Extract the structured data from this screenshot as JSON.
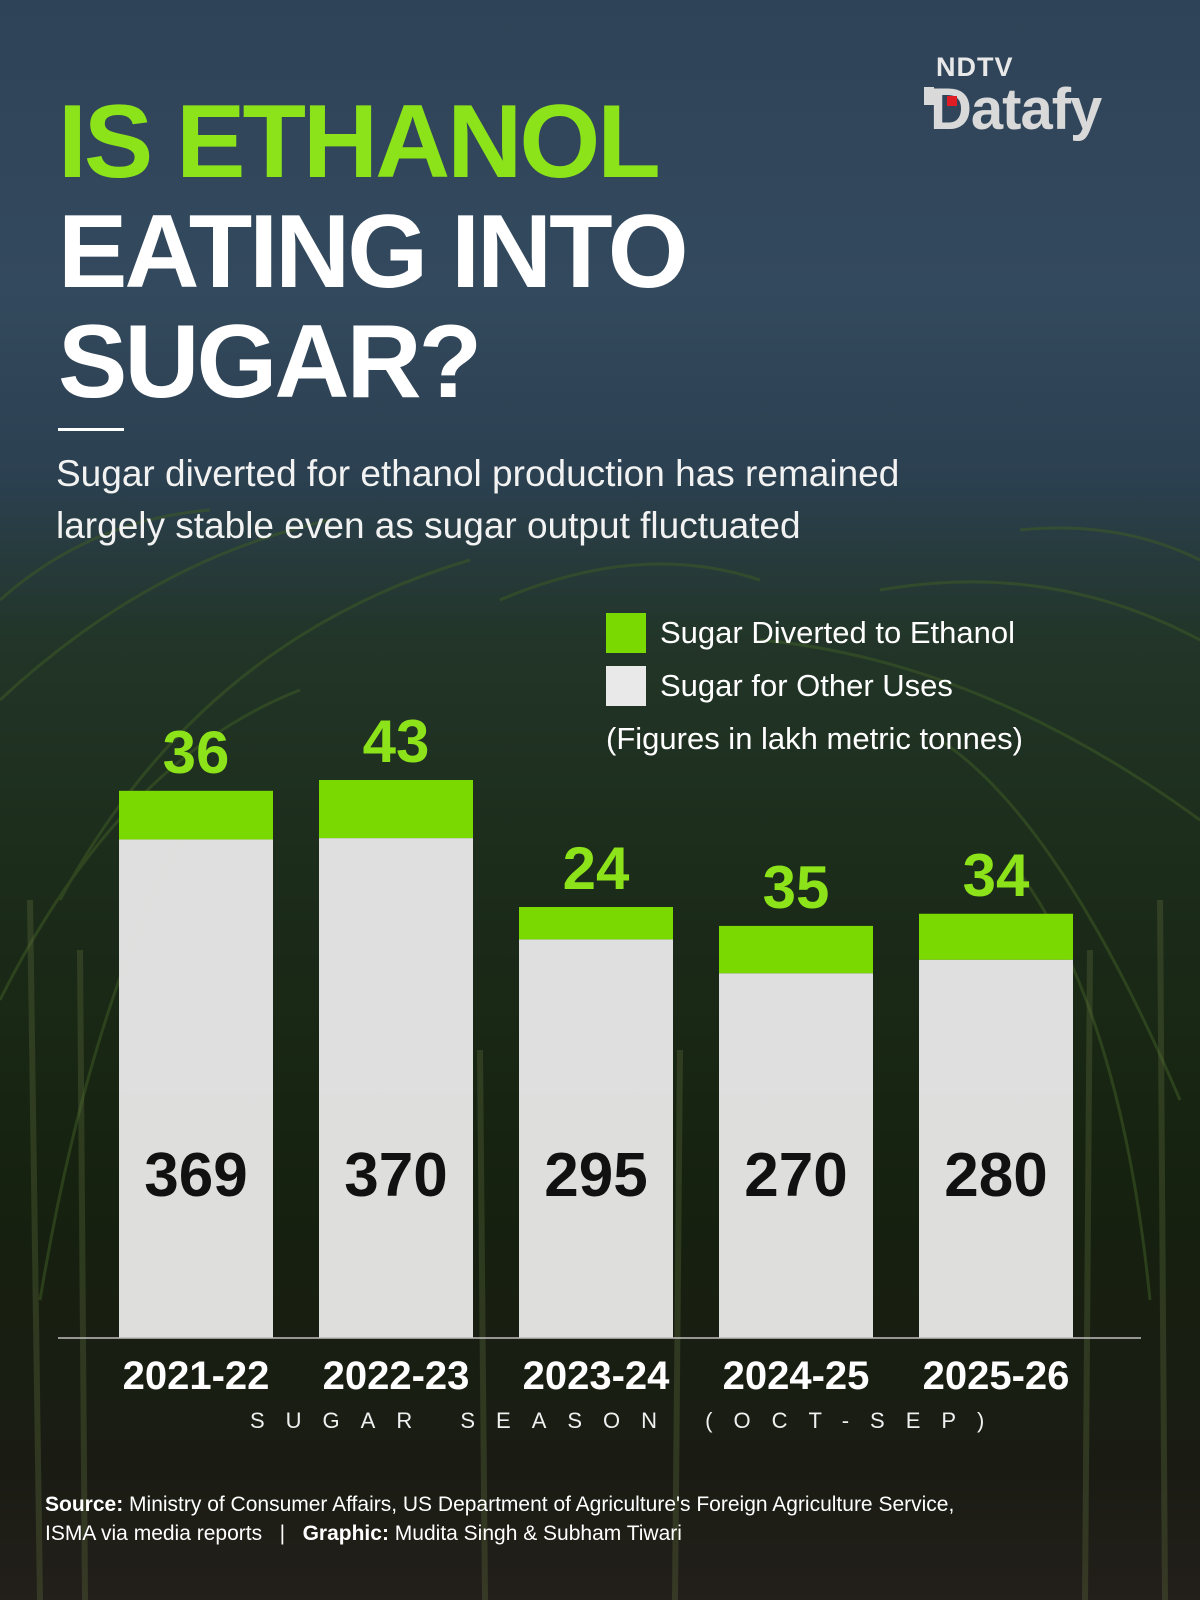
{
  "brand": {
    "top": "NDTV",
    "main": "Datafy"
  },
  "headline": {
    "line1": "IS ETHANOL",
    "line2": "EATING INTO",
    "line3": "SUGAR?"
  },
  "subtitle": {
    "line1": "Sugar diverted for ethanol production has remained",
    "line2": "largely stable even as sugar output fluctuated"
  },
  "legend": {
    "ethanol": "Sugar Diverted to Ethanol",
    "other": "Sugar for Other Uses",
    "units": "(Figures in lakh metric tonnes)"
  },
  "axis_title": "SUGAR SEASON (OCT-SEP)",
  "footer": {
    "source_label": "Source:",
    "source_text": "Ministry of Consumer Affairs, US Department of Agriculture's Foreign Agriculture Service,",
    "source_text_2": "ISMA via media reports",
    "separator": "|",
    "graphic_label": "Graphic:",
    "graphic_text": "Mudita Singh & Subham Tiwari"
  },
  "colors": {
    "ethanol": "#7ad900",
    "ethanol_label": "#8de31a",
    "other": "#e9e9e9",
    "background": "#1c2c1a"
  },
  "chart_data": {
    "type": "bar",
    "stacked": true,
    "categories": [
      "2021-22",
      "2022-23",
      "2023-24",
      "2024-25",
      "2025-26"
    ],
    "series": [
      {
        "name": "Sugar for Other Uses",
        "values": [
          369,
          370,
          295,
          270,
          280
        ]
      },
      {
        "name": "Sugar Diverted to Ethanol",
        "values": [
          36,
          43,
          24,
          35,
          34
        ]
      }
    ],
    "xlabel": "SUGAR SEASON (OCT-SEP)",
    "ylabel": "",
    "ylim": [
      0,
      413
    ],
    "units": "lakh metric tonnes",
    "legend_position": "top-right",
    "grid": false
  }
}
